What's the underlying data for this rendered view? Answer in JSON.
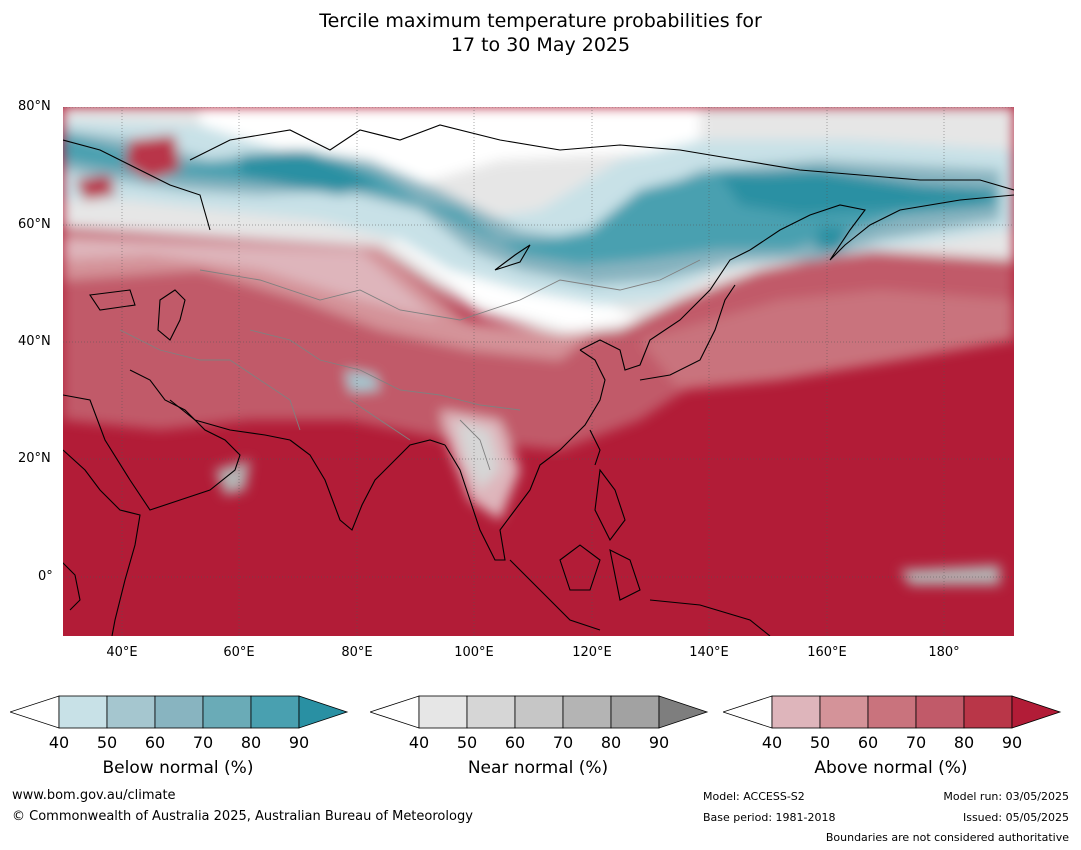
{
  "title_line1": "Tercile maximum temperature probabilities for",
  "title_line2": "17 to 30 May 2025",
  "map": {
    "lat_labels": [
      "80°N",
      "60°N",
      "40°N",
      "20°N",
      "0°"
    ],
    "lon_labels": [
      "40°E",
      "60°E",
      "80°E",
      "100°E",
      "120°E",
      "140°E",
      "160°E",
      "180°"
    ],
    "lat_range": [
      -10,
      80
    ],
    "lon_range": [
      30,
      192
    ],
    "colors": {
      "below": [
        "#c8e1e7",
        "#a5c6cf",
        "#88b4c0",
        "#6aabb7",
        "#49a0b0",
        "#2990a3"
      ],
      "near": [
        "#e6e6e6",
        "#d6d6d6",
        "#c6c6c6",
        "#b4b4b4",
        "#a2a2a2",
        "#7e7e7e"
      ],
      "above": [
        "#deb5bb",
        "#d49399",
        "#c9737d",
        "#c15a69",
        "#b93648",
        "#b21c37"
      ],
      "coast": "#000000",
      "borders": "#808080"
    }
  },
  "legends": [
    {
      "title": "Below normal (%)",
      "ticks": [
        "40",
        "50",
        "60",
        "70",
        "80",
        "90"
      ]
    },
    {
      "title": "Near normal (%)",
      "ticks": [
        "40",
        "50",
        "60",
        "70",
        "80",
        "90"
      ]
    },
    {
      "title": "Above normal (%)",
      "ticks": [
        "40",
        "50",
        "60",
        "70",
        "80",
        "90"
      ]
    }
  ],
  "footer": {
    "website": "www.bom.gov.au/climate",
    "copyright": "© Commonwealth of Australia 2025, Australian Bureau of Meteorology",
    "model": "Model: ACCESS-S2",
    "base_period": "Base period: 1981-2018",
    "model_run": "Model run: 03/05/2025",
    "issued": "Issued: 05/05/2025",
    "disclaimer": "Boundaries are not considered authoritative"
  }
}
